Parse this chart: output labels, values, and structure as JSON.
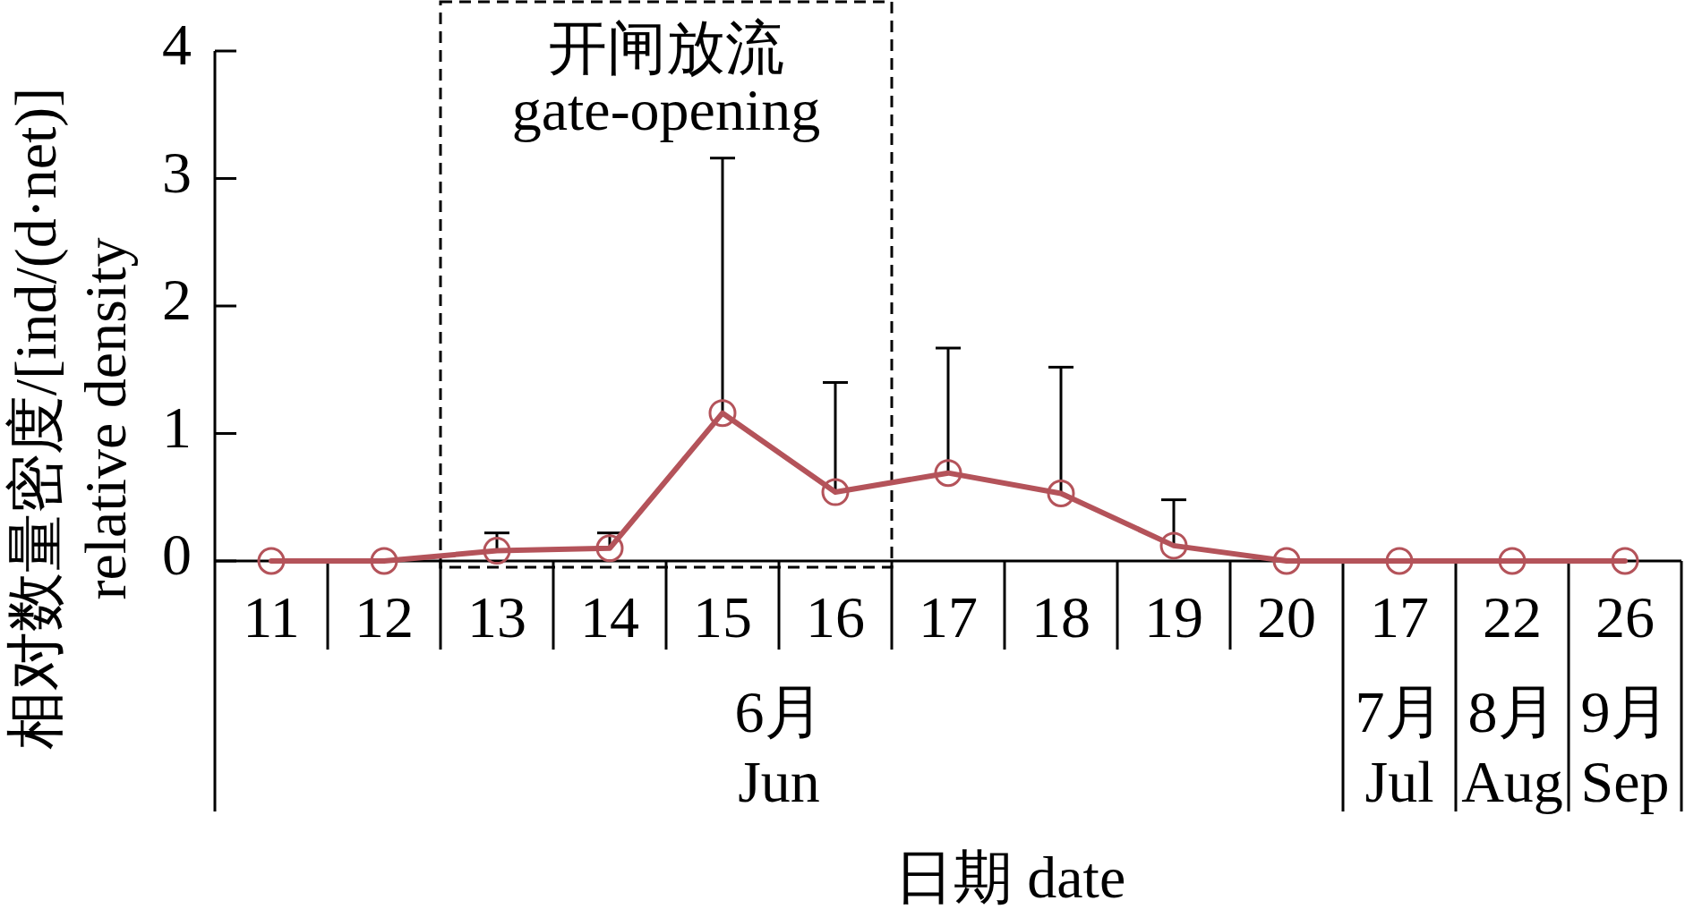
{
  "chart_data": {
    "type": "line",
    "xlabel": "日期 date",
    "ylabel": "相对数量密度/[ind/(d·net)] relative density",
    "categories": [
      "11",
      "12",
      "13",
      "14",
      "15",
      "16",
      "17",
      "18",
      "19",
      "20",
      "17",
      "22",
      "26"
    ],
    "series": [
      {
        "color": "#b4535a",
        "values": [
          0,
          0,
          0.08,
          0.1,
          1.16,
          0.54,
          0.69,
          0.53,
          0.12,
          0,
          0,
          0,
          0
        ],
        "errors": [
          null,
          null,
          [
            0.08,
            0.22
          ],
          [
            0.1,
            0.22
          ],
          [
            1.16,
            3.16
          ],
          [
            0.54,
            1.4
          ],
          [
            0.69,
            1.67
          ],
          [
            0.53,
            1.52
          ],
          [
            0.12,
            0.48
          ],
          null,
          null,
          null,
          null
        ]
      }
    ],
    "ylim": [
      0,
      4
    ],
    "yticks": [
      0,
      1,
      2,
      3,
      4
    ],
    "marker": "circle",
    "line_style": "solid",
    "bands": [
      {
        "axis": "x",
        "from": "13",
        "to": "16",
        "label": "开闸放流 gate-opening",
        "color": "#000000"
      }
    ],
    "annotations": [
      "6月 Jun",
      "7月 Jul",
      "8月 Aug",
      "9月 Sep"
    ]
  }
}
